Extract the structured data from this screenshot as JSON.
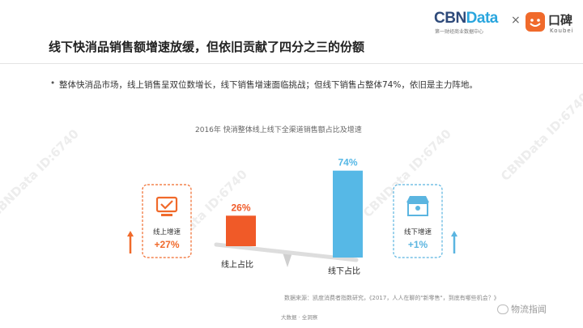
{
  "brand": {
    "cbn_part1": "CBN",
    "cbn_part2": "Data",
    "cbn_sub": "第一财经商业数据中心",
    "separator": "×",
    "koubei_name": "口碑",
    "koubei_sub": "Koubei"
  },
  "title": "线下快消品销售额增速放缓，但依旧贡献了四分之三的份额",
  "bullet": {
    "dot": "•",
    "text": "整体快消品市场，线上销售呈双位数增长，线下销售增速面临挑战；但线下销售占整体74%，依旧是主力阵地。"
  },
  "colors": {
    "online": "#f05a28",
    "offline": "#56b8e6",
    "online_badge": "#f06a2b",
    "offline_badge": "#5bb5e0",
    "scale": "#dddddd"
  },
  "chart_data": {
    "type": "bar",
    "title": "2016年 快消整体线上线下全渠道销售额占比及增速",
    "categories": [
      "线上占比",
      "线下占比"
    ],
    "values": [
      26,
      74
    ],
    "value_labels": [
      "26%",
      "74%"
    ],
    "unit": "%",
    "ylim": [
      0,
      100
    ],
    "growth": [
      {
        "label": "线上增速",
        "value": "+27%",
        "icon": "computer-monitor-icon",
        "trend": "up"
      },
      {
        "label": "线下增速",
        "value": "+1%",
        "icon": "storefront-location-icon",
        "trend": "up"
      }
    ]
  },
  "watermark": "CBNData ID:6740",
  "source": "数据来源：凯度消费者指数研究，《2017，人人在聊的\"新零售\"，到底有哪些机会？》",
  "footer": "大数据 · 全洞察",
  "wechat": {
    "icon": "wechat-icon",
    "label": "物流指闻"
  }
}
